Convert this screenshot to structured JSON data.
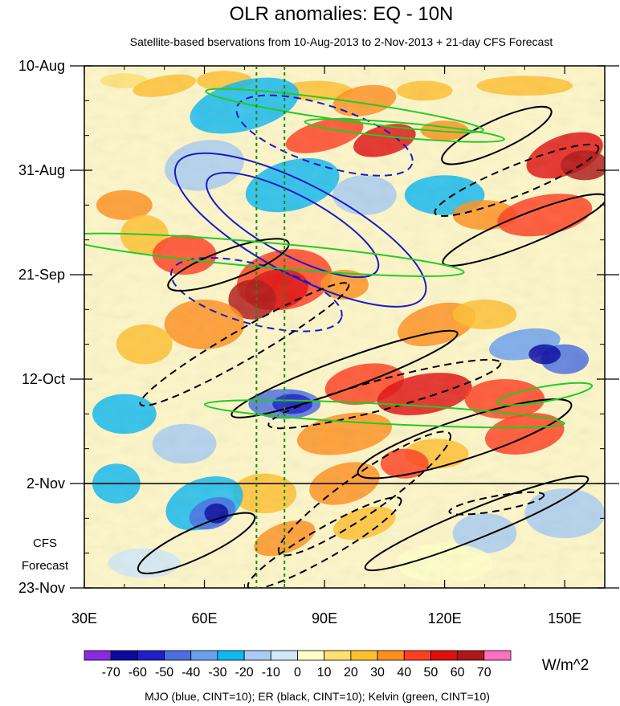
{
  "chart_data": {
    "type": "heatmap",
    "title": "OLR anomalies: EQ - 10N",
    "subtitle": "Satellite-based bservations from 10-Aug-2013 to 2-Nov-2013 + 21-day CFS Forecast",
    "x_ticks": [
      {
        "value": 30,
        "label": "30E"
      },
      {
        "value": 60,
        "label": "60E"
      },
      {
        "value": 90,
        "label": "90E"
      },
      {
        "value": 120,
        "label": "120E"
      },
      {
        "value": 150,
        "label": "150E"
      }
    ],
    "xlim": [
      30,
      160
    ],
    "y_ticks": [
      {
        "day": 0,
        "label": "10-Aug"
      },
      {
        "day": 21,
        "label": "31-Aug"
      },
      {
        "day": 42,
        "label": "21-Sep"
      },
      {
        "day": 63,
        "label": "12-Oct"
      },
      {
        "day": 84,
        "label": "2-Nov"
      },
      {
        "day": 105,
        "label": "23-Nov"
      }
    ],
    "ylim_days": [
      0,
      105
    ],
    "forecast_start_day": 84,
    "forecast_label_line1": "CFS",
    "forecast_label_line2": "Forecast",
    "reference_longitudes": [
      73,
      80
    ],
    "colorbar": {
      "unit": "W/m^2",
      "levels": [
        "-70",
        "-60",
        "-50",
        "-40",
        "-30",
        "-20",
        "-10",
        "0",
        "10",
        "20",
        "30",
        "40",
        "50",
        "60",
        "70"
      ],
      "colors": [
        "#8a2be2",
        "#0a0aa0",
        "#2020c8",
        "#4a6ee0",
        "#6aa0f0",
        "#10b8f0",
        "#a8ccf2",
        "#d0e8f8",
        "#ffffc8",
        "#ffe070",
        "#ffc030",
        "#ff9020",
        "#ff4020",
        "#e01010",
        "#b01818",
        "#ff70c0"
      ]
    },
    "contour_caption": "MJO (blue, CINT=10); ER (black, CINT=10); Kelvin (green, CINT=10)",
    "contour_series": [
      {
        "name": "MJO",
        "color": "#1a1ac8",
        "cint": 10
      },
      {
        "name": "ER",
        "color": "#000000",
        "cint": 10
      },
      {
        "name": "Kelvin",
        "color": "#22cc22",
        "cint": 10
      }
    ]
  }
}
